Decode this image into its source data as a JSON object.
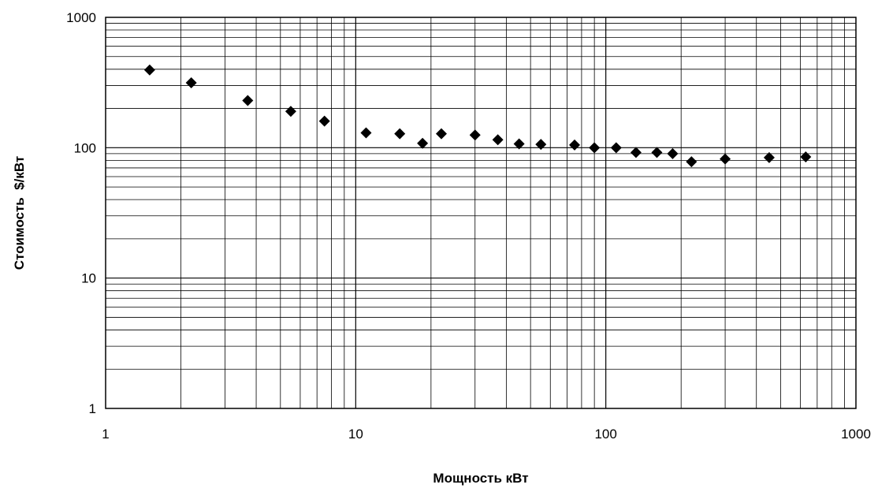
{
  "chart_data": {
    "type": "scatter",
    "xlabel": "Мощность кВт",
    "ylabel": "Стоимость  $/кВт",
    "xscale": "log",
    "yscale": "log",
    "xlim": [
      1,
      1000
    ],
    "ylim": [
      1,
      1000
    ],
    "grid": true,
    "x_ticks": [
      "1",
      "10",
      "100",
      "1000"
    ],
    "y_ticks": [
      "1000",
      "100",
      "10",
      "1"
    ],
    "marker": "diamond",
    "marker_color": "#000000",
    "x": [
      1.5,
      2.2,
      3.7,
      5.5,
      7.5,
      11,
      15,
      18.5,
      22,
      30,
      37,
      45,
      55,
      75,
      90,
      110,
      132,
      160,
      185,
      220,
      300,
      450,
      630
    ],
    "y": [
      395,
      315,
      230,
      190,
      160,
      130,
      128,
      108,
      128,
      125,
      115,
      107,
      106,
      105,
      100,
      100,
      92,
      92,
      90,
      78,
      82,
      84,
      85
    ]
  }
}
